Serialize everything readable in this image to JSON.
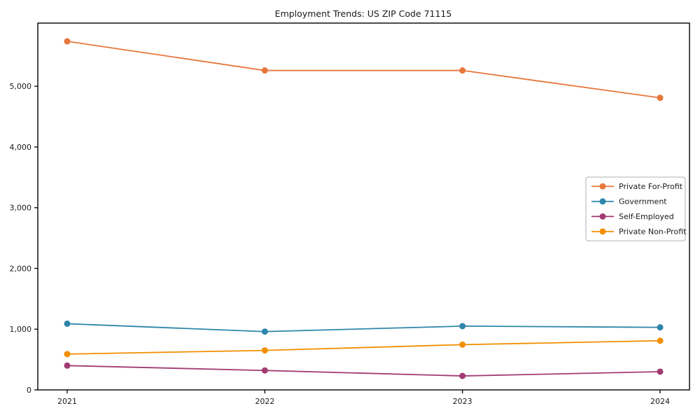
{
  "chart_data": {
    "type": "line",
    "title": "Employment Trends: US ZIP Code 71115",
    "x": [
      "2021",
      "2022",
      "2023",
      "2024"
    ],
    "xlabel": "",
    "ylabel": "",
    "ylim": [
      0,
      6040
    ],
    "yticks": [
      0,
      1000,
      2000,
      3000,
      4000,
      5000
    ],
    "ytick_labels": [
      "0",
      "1,000",
      "2,000",
      "3,000",
      "4,000",
      "5,000"
    ],
    "grid": false,
    "legend_position": "center-right",
    "series": [
      {
        "name": "Private For-Profit",
        "color": "#E8763C",
        "values": [
          5740,
          5260,
          5260,
          4810
        ]
      },
      {
        "name": "Government",
        "color": "#2E86AB",
        "values": [
          1090,
          960,
          1050,
          1030
        ]
      },
      {
        "name": "Self-Employed",
        "color": "#A23B72",
        "values": [
          400,
          320,
          230,
          300
        ]
      },
      {
        "name": "Private Non-Profit",
        "color": "#F18F01",
        "values": [
          590,
          650,
          745,
          810
        ]
      }
    ],
    "colors": {
      "spine": "#000000",
      "text": "#1a1a1a",
      "legend_border": "#b0b0b0",
      "background": "#ffffff"
    }
  }
}
